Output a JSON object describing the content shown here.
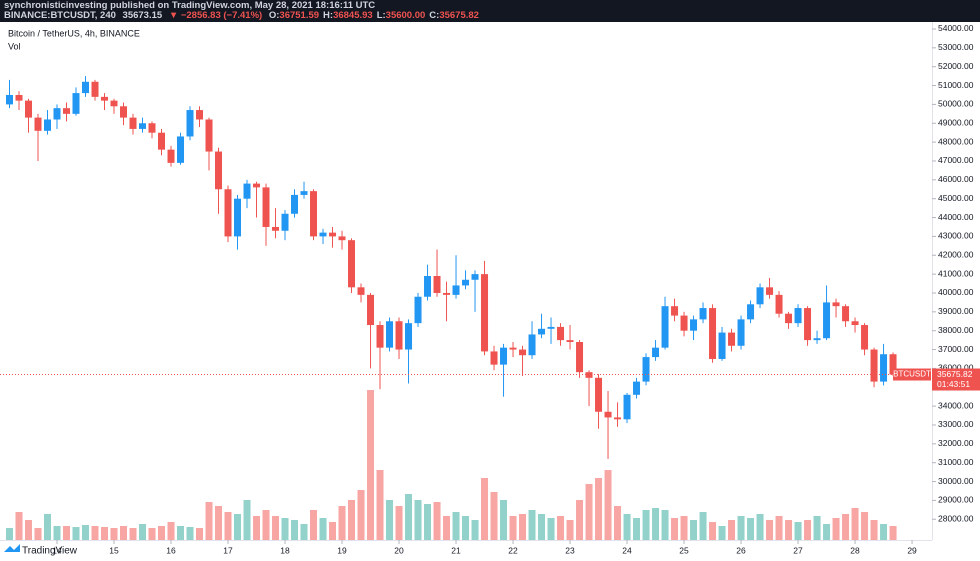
{
  "header": {
    "publisher": "synchronisticinvesting published on TradingView.com, May 28, 2021 18:16:11 UTC",
    "symbol": "BINANCE:BTCUSDT, 240",
    "last": "35673.15",
    "change": "▼ −2856.83 (−7.41%)",
    "ohlc": [
      "O:",
      "36751.59",
      "H:",
      "36845.93",
      "L:",
      "35600.00",
      "C:",
      "35675.82"
    ]
  },
  "footer": {
    "brand": "TradingView"
  },
  "chart_data": {
    "type": "candlestick",
    "title": "Bitcoin / TetherUS, 4h, BINANCE",
    "volume_label": "Vol",
    "symbol_tag": "BTCUSDT",
    "countdown": "01:43:51",
    "up_color": "#2196f3",
    "down_color": "#ef5350",
    "volume_up_color": "#92d2cb",
    "volume_down_color": "#f7a6a4",
    "last_price_color": "#ef5350",
    "xlim": [
      -1,
      97.1
    ],
    "ylim": [
      26900,
      54370
    ],
    "xticks": [
      {
        "value": 5,
        "label": "14"
      },
      {
        "value": 11,
        "label": "15"
      },
      {
        "value": 17,
        "label": "16"
      },
      {
        "value": 23,
        "label": "17"
      },
      {
        "value": 29,
        "label": "18"
      },
      {
        "value": 35,
        "label": "19"
      },
      {
        "value": 41,
        "label": "20"
      },
      {
        "value": 47,
        "label": "21"
      },
      {
        "value": 53,
        "label": "22"
      },
      {
        "value": 59,
        "label": "23"
      },
      {
        "value": 65,
        "label": "24"
      },
      {
        "value": 71,
        "label": "25"
      },
      {
        "value": 77,
        "label": "26"
      },
      {
        "value": 83,
        "label": "27"
      },
      {
        "value": 89,
        "label": "28"
      },
      {
        "value": 95,
        "label": "29"
      }
    ],
    "yticks": [
      {
        "value": 28000,
        "label": "28000.00"
      },
      {
        "value": 29000,
        "label": "29000.00"
      },
      {
        "value": 30000,
        "label": "30000.00"
      },
      {
        "value": 31000,
        "label": "31000.00"
      },
      {
        "value": 32000,
        "label": "32000.00"
      },
      {
        "value": 33000,
        "label": "33000.00"
      },
      {
        "value": 34000,
        "label": "34000.00"
      },
      {
        "value": 35000,
        "label": "35000.00"
      },
      {
        "value": 36000,
        "label": "36000.00"
      },
      {
        "value": 37000,
        "label": "37000.00"
      },
      {
        "value": 38000,
        "label": "38000.00"
      },
      {
        "value": 39000,
        "label": "39000.00"
      },
      {
        "value": 40000,
        "label": "40000.00"
      },
      {
        "value": 41000,
        "label": "41000.00"
      },
      {
        "value": 42000,
        "label": "42000.00"
      },
      {
        "value": 43000,
        "label": "43000.00"
      },
      {
        "value": 44000,
        "label": "44000.00"
      },
      {
        "value": 45000,
        "label": "45000.00"
      },
      {
        "value": 46000,
        "label": "46000.00"
      },
      {
        "value": 47000,
        "label": "47000.00"
      },
      {
        "value": 48000,
        "label": "48000.00"
      },
      {
        "value": 49000,
        "label": "49000.00"
      },
      {
        "value": 50000,
        "label": "50000.00"
      },
      {
        "value": 51000,
        "label": "51000.00"
      },
      {
        "value": 52000,
        "label": "52000.00"
      },
      {
        "value": 53000,
        "label": "53000.00"
      },
      {
        "value": 54000,
        "label": "54000.00"
      }
    ],
    "open": [
      50000,
      50500,
      50200,
      49300,
      48600,
      49200,
      49800,
      49500,
      50600,
      51200,
      50400,
      50200,
      49900,
      49300,
      48700,
      49000,
      48500,
      47600,
      46900,
      48300,
      49700,
      49200,
      47500,
      45500,
      43000,
      45000,
      45800,
      45600,
      43500,
      43300,
      44200,
      45200,
      45400,
      43000,
      43200,
      43000,
      42800,
      40300,
      39900,
      38300,
      37100,
      38500,
      37000,
      38400,
      39800,
      40900,
      40000,
      39900,
      40400,
      40700,
      41000,
      36900,
      36200,
      37100,
      37000,
      36700,
      37800,
      38100,
      38200,
      37500,
      37400,
      35800,
      35500,
      33700,
      33400,
      33300,
      34600,
      35300,
      36600,
      37100,
      39300,
      38800,
      38000,
      38600,
      39200,
      36500,
      37900,
      37200,
      38600,
      39400,
      40300,
      39900,
      38900,
      38400,
      39200,
      37500,
      37600,
      39500,
      39300,
      38500,
      38300,
      37000,
      35300,
      36751.59
    ],
    "high": [
      51300,
      50700,
      50300,
      49500,
      49700,
      50000,
      50100,
      50900,
      51500,
      51300,
      50600,
      50300,
      50100,
      49500,
      49300,
      49100,
      48700,
      47800,
      48500,
      49900,
      49900,
      49300,
      47700,
      45700,
      45200,
      46000,
      45900,
      45800,
      44500,
      44400,
      45500,
      45900,
      45500,
      43400,
      43500,
      43300,
      42900,
      40500,
      40000,
      38500,
      38700,
      38700,
      38600,
      40000,
      41500,
      42300,
      40600,
      42000,
      41200,
      41200,
      41700,
      37200,
      37300,
      37400,
      37200,
      38500,
      38900,
      38700,
      38400,
      38300,
      37500,
      35900,
      35700,
      34800,
      34200,
      34700,
      35500,
      36800,
      37500,
      39800,
      39700,
      39000,
      38800,
      39500,
      39400,
      38200,
      38100,
      38800,
      39600,
      40500,
      40800,
      40100,
      39000,
      39400,
      39300,
      38000,
      40400,
      39700,
      39400,
      38700,
      38400,
      37100,
      37300,
      36845.93
    ],
    "low": [
      49800,
      49700,
      48500,
      47000,
      48400,
      48700,
      49100,
      49400,
      50400,
      50200,
      49700,
      49500,
      48900,
      48400,
      48500,
      48200,
      47300,
      46700,
      46800,
      48100,
      48800,
      46500,
      44200,
      42700,
      42300,
      44500,
      44000,
      42500,
      42900,
      42800,
      44000,
      45000,
      42800,
      42600,
      42400,
      42300,
      40000,
      39500,
      36000,
      34900,
      36900,
      36500,
      35200,
      38200,
      39600,
      39800,
      38500,
      39700,
      40200,
      39000,
      36700,
      35900,
      34500,
      36600,
      35600,
      36500,
      37600,
      37300,
      37200,
      37000,
      35500,
      34000,
      32800,
      31200,
      32900,
      33100,
      34400,
      35100,
      36400,
      37000,
      38500,
      37700,
      37500,
      38400,
      36300,
      36400,
      36900,
      37000,
      38400,
      39200,
      39700,
      38700,
      38100,
      38200,
      37200,
      37300,
      37500,
      38700,
      38200,
      37900,
      36700,
      35000,
      35100,
      35600
    ],
    "close": [
      50500,
      50200,
      49300,
      48600,
      49200,
      49800,
      49500,
      50600,
      51200,
      50400,
      50200,
      49900,
      49300,
      48700,
      49000,
      48500,
      47600,
      46900,
      48300,
      49700,
      49200,
      47500,
      45500,
      43000,
      45000,
      45800,
      45600,
      43500,
      43300,
      44200,
      45200,
      45400,
      43000,
      43200,
      43000,
      42800,
      40300,
      39900,
      38300,
      37100,
      38500,
      37000,
      38400,
      39800,
      40900,
      40000,
      39900,
      40400,
      40700,
      41000,
      36900,
      36200,
      37100,
      37000,
      36700,
      37800,
      38100,
      38200,
      37500,
      37400,
      35800,
      35500,
      33700,
      33400,
      33300,
      34600,
      35300,
      36600,
      37100,
      39300,
      38800,
      38000,
      38600,
      39200,
      36500,
      37900,
      37200,
      38600,
      39400,
      40300,
      39900,
      38900,
      38400,
      39200,
      37500,
      37600,
      39500,
      39300,
      38500,
      38300,
      37000,
      35300,
      36751.59,
      35675.82
    ],
    "volume": [
      12,
      28,
      20,
      12,
      26,
      14,
      14,
      13,
      15,
      14,
      13,
      12,
      14,
      12,
      16,
      12,
      14,
      18,
      14,
      13,
      12,
      38,
      34,
      28,
      26,
      40,
      24,
      30,
      24,
      22,
      20,
      16,
      30,
      22,
      18,
      34,
      40,
      50,
      150,
      70,
      40,
      34,
      46,
      40,
      36,
      38,
      24,
      28,
      24,
      20,
      62,
      48,
      40,
      24,
      26,
      30,
      26,
      22,
      24,
      20,
      40,
      56,
      62,
      70,
      34,
      26,
      22,
      30,
      32,
      30,
      22,
      24,
      20,
      28,
      18,
      14,
      20,
      24,
      22,
      26,
      20,
      24,
      20,
      18,
      20,
      24,
      16,
      22,
      26,
      32,
      28,
      20,
      16,
      14
    ]
  }
}
